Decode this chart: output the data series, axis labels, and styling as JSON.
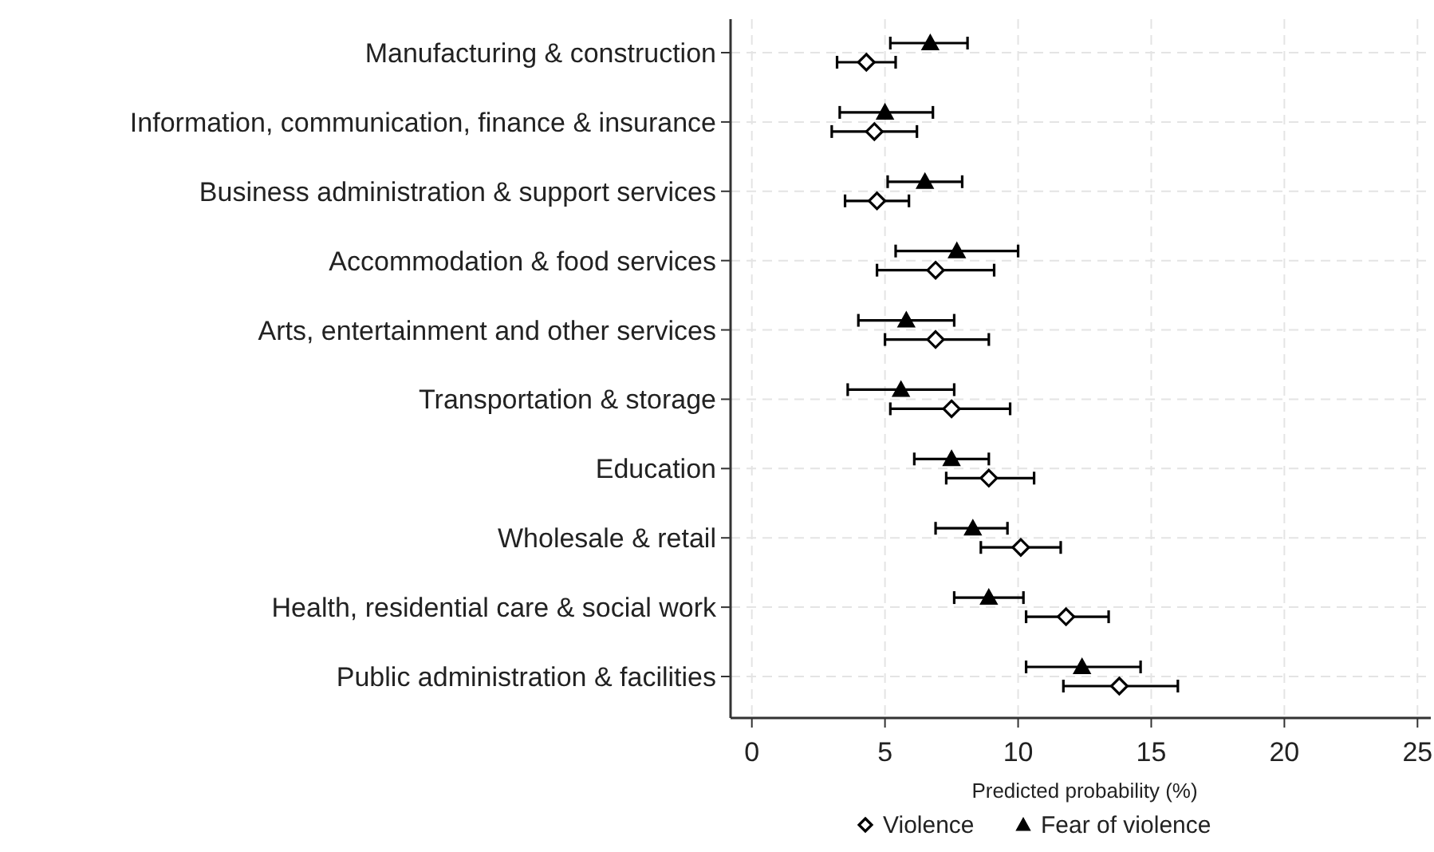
{
  "chart_data": {
    "type": "scatter",
    "orientation": "horizontal",
    "xlabel": "Predicted probability (%)",
    "categories": [
      "Manufacturing & construction",
      "Information, communication, finance & insurance",
      "Business administration & support services",
      "Accommodation & food services",
      "Arts, entertainment and other services",
      "Transportation & storage",
      "Education",
      "Wholesale & retail",
      "Health, residential care & social work",
      "Public administration & facilities"
    ],
    "series": [
      {
        "name": "Violence",
        "color": "#000000",
        "marker": "diamond",
        "values": [
          4.3,
          4.6,
          4.7,
          6.9,
          6.9,
          7.5,
          8.9,
          10.1,
          11.8,
          13.8
        ],
        "errors": [
          [
            3.2,
            5.4
          ],
          [
            3.0,
            6.2
          ],
          [
            3.5,
            5.9
          ],
          [
            4.7,
            9.1
          ],
          [
            5.0,
            8.9
          ],
          [
            5.2,
            9.7
          ],
          [
            7.3,
            10.6
          ],
          [
            8.6,
            11.6
          ],
          [
            10.3,
            13.4
          ],
          [
            11.7,
            16.0
          ]
        ]
      },
      {
        "name": "Fear of violence",
        "color": "#000000",
        "marker": "triangle",
        "values": [
          6.7,
          5.0,
          6.5,
          7.7,
          5.8,
          5.6,
          7.5,
          8.3,
          8.9,
          12.4
        ],
        "errors": [
          [
            5.2,
            8.1
          ],
          [
            3.3,
            6.8
          ],
          [
            5.1,
            7.9
          ],
          [
            5.4,
            10.0
          ],
          [
            4.0,
            7.6
          ],
          [
            3.6,
            7.6
          ],
          [
            6.1,
            8.9
          ],
          [
            6.9,
            9.6
          ],
          [
            7.6,
            10.2
          ],
          [
            10.3,
            14.6
          ]
        ]
      }
    ],
    "xlim": [
      -0.8,
      25.5
    ],
    "xticks": [
      0,
      5,
      10,
      15,
      20,
      25
    ],
    "grid": true,
    "legend": "bottom"
  }
}
